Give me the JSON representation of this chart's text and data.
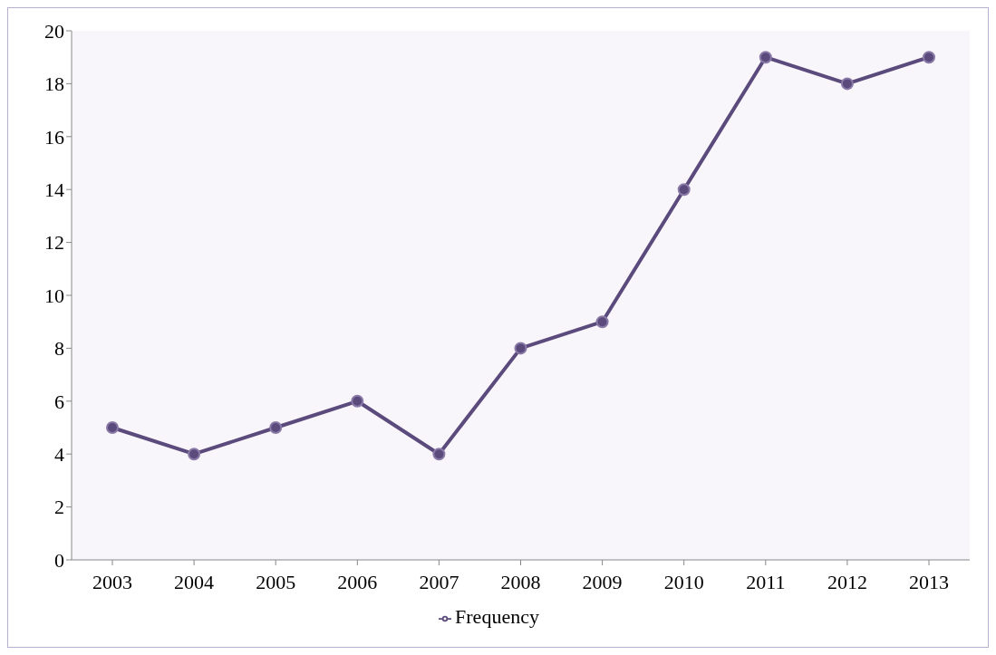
{
  "chart_data": {
    "type": "line",
    "categories": [
      "2003",
      "2004",
      "2005",
      "2006",
      "2007",
      "2008",
      "2009",
      "2010",
      "2011",
      "2012",
      "2013"
    ],
    "series": [
      {
        "name": "Frequency",
        "color": "#5b4a7c",
        "values": [
          5,
          4,
          5,
          6,
          4,
          8,
          9,
          14,
          19,
          18,
          19
        ]
      }
    ],
    "ylim": [
      0,
      20
    ],
    "yticks": [
      0,
      2,
      4,
      6,
      8,
      10,
      12,
      14,
      16,
      18,
      20
    ],
    "legend": "bottom",
    "marker": "circle",
    "line_style": "solid"
  }
}
